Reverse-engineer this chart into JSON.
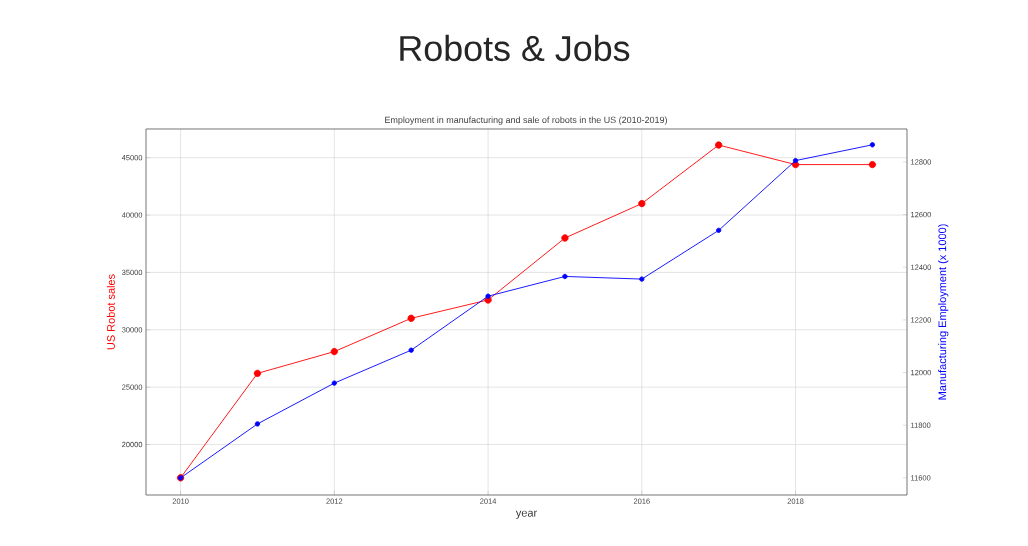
{
  "chart_data": {
    "type": "line",
    "title": "Robots & Jobs",
    "subtitle": "Employment in manufacturing and sale of robots in the US (2010-2019)",
    "xlabel": "year",
    "ylabel": "US Robot sales",
    "y2label": "Manufacturing Employment (x 1000)",
    "x": [
      2010,
      2011,
      2012,
      2013,
      2014,
      2015,
      2016,
      2017,
      2018,
      2019
    ],
    "series": [
      {
        "color": "#ff0000",
        "values": [
          17100,
          26200,
          28100,
          31000,
          32600,
          38000,
          41000,
          46100,
          44400,
          44400
        ]
      },
      {
        "color": "#0000ff",
        "axis": "y2",
        "values": [
          11600,
          11805,
          11960,
          12085,
          12290,
          12365,
          12355,
          12540,
          12805,
          12865
        ]
      }
    ],
    "xlim": [
      2009.55,
      2019.45
    ],
    "ylim": [
      15600,
      47500
    ],
    "y2lim": [
      11535,
      12925
    ],
    "xticks": [
      2010,
      2012,
      2014,
      2016,
      2018
    ],
    "yticks": [
      20000,
      25000,
      30000,
      35000,
      40000,
      45000
    ],
    "y2ticks": [
      11600,
      11800,
      12000,
      12200,
      12400,
      12600,
      12800
    ],
    "grid": true,
    "marker": "circle",
    "line_style": "solid"
  }
}
